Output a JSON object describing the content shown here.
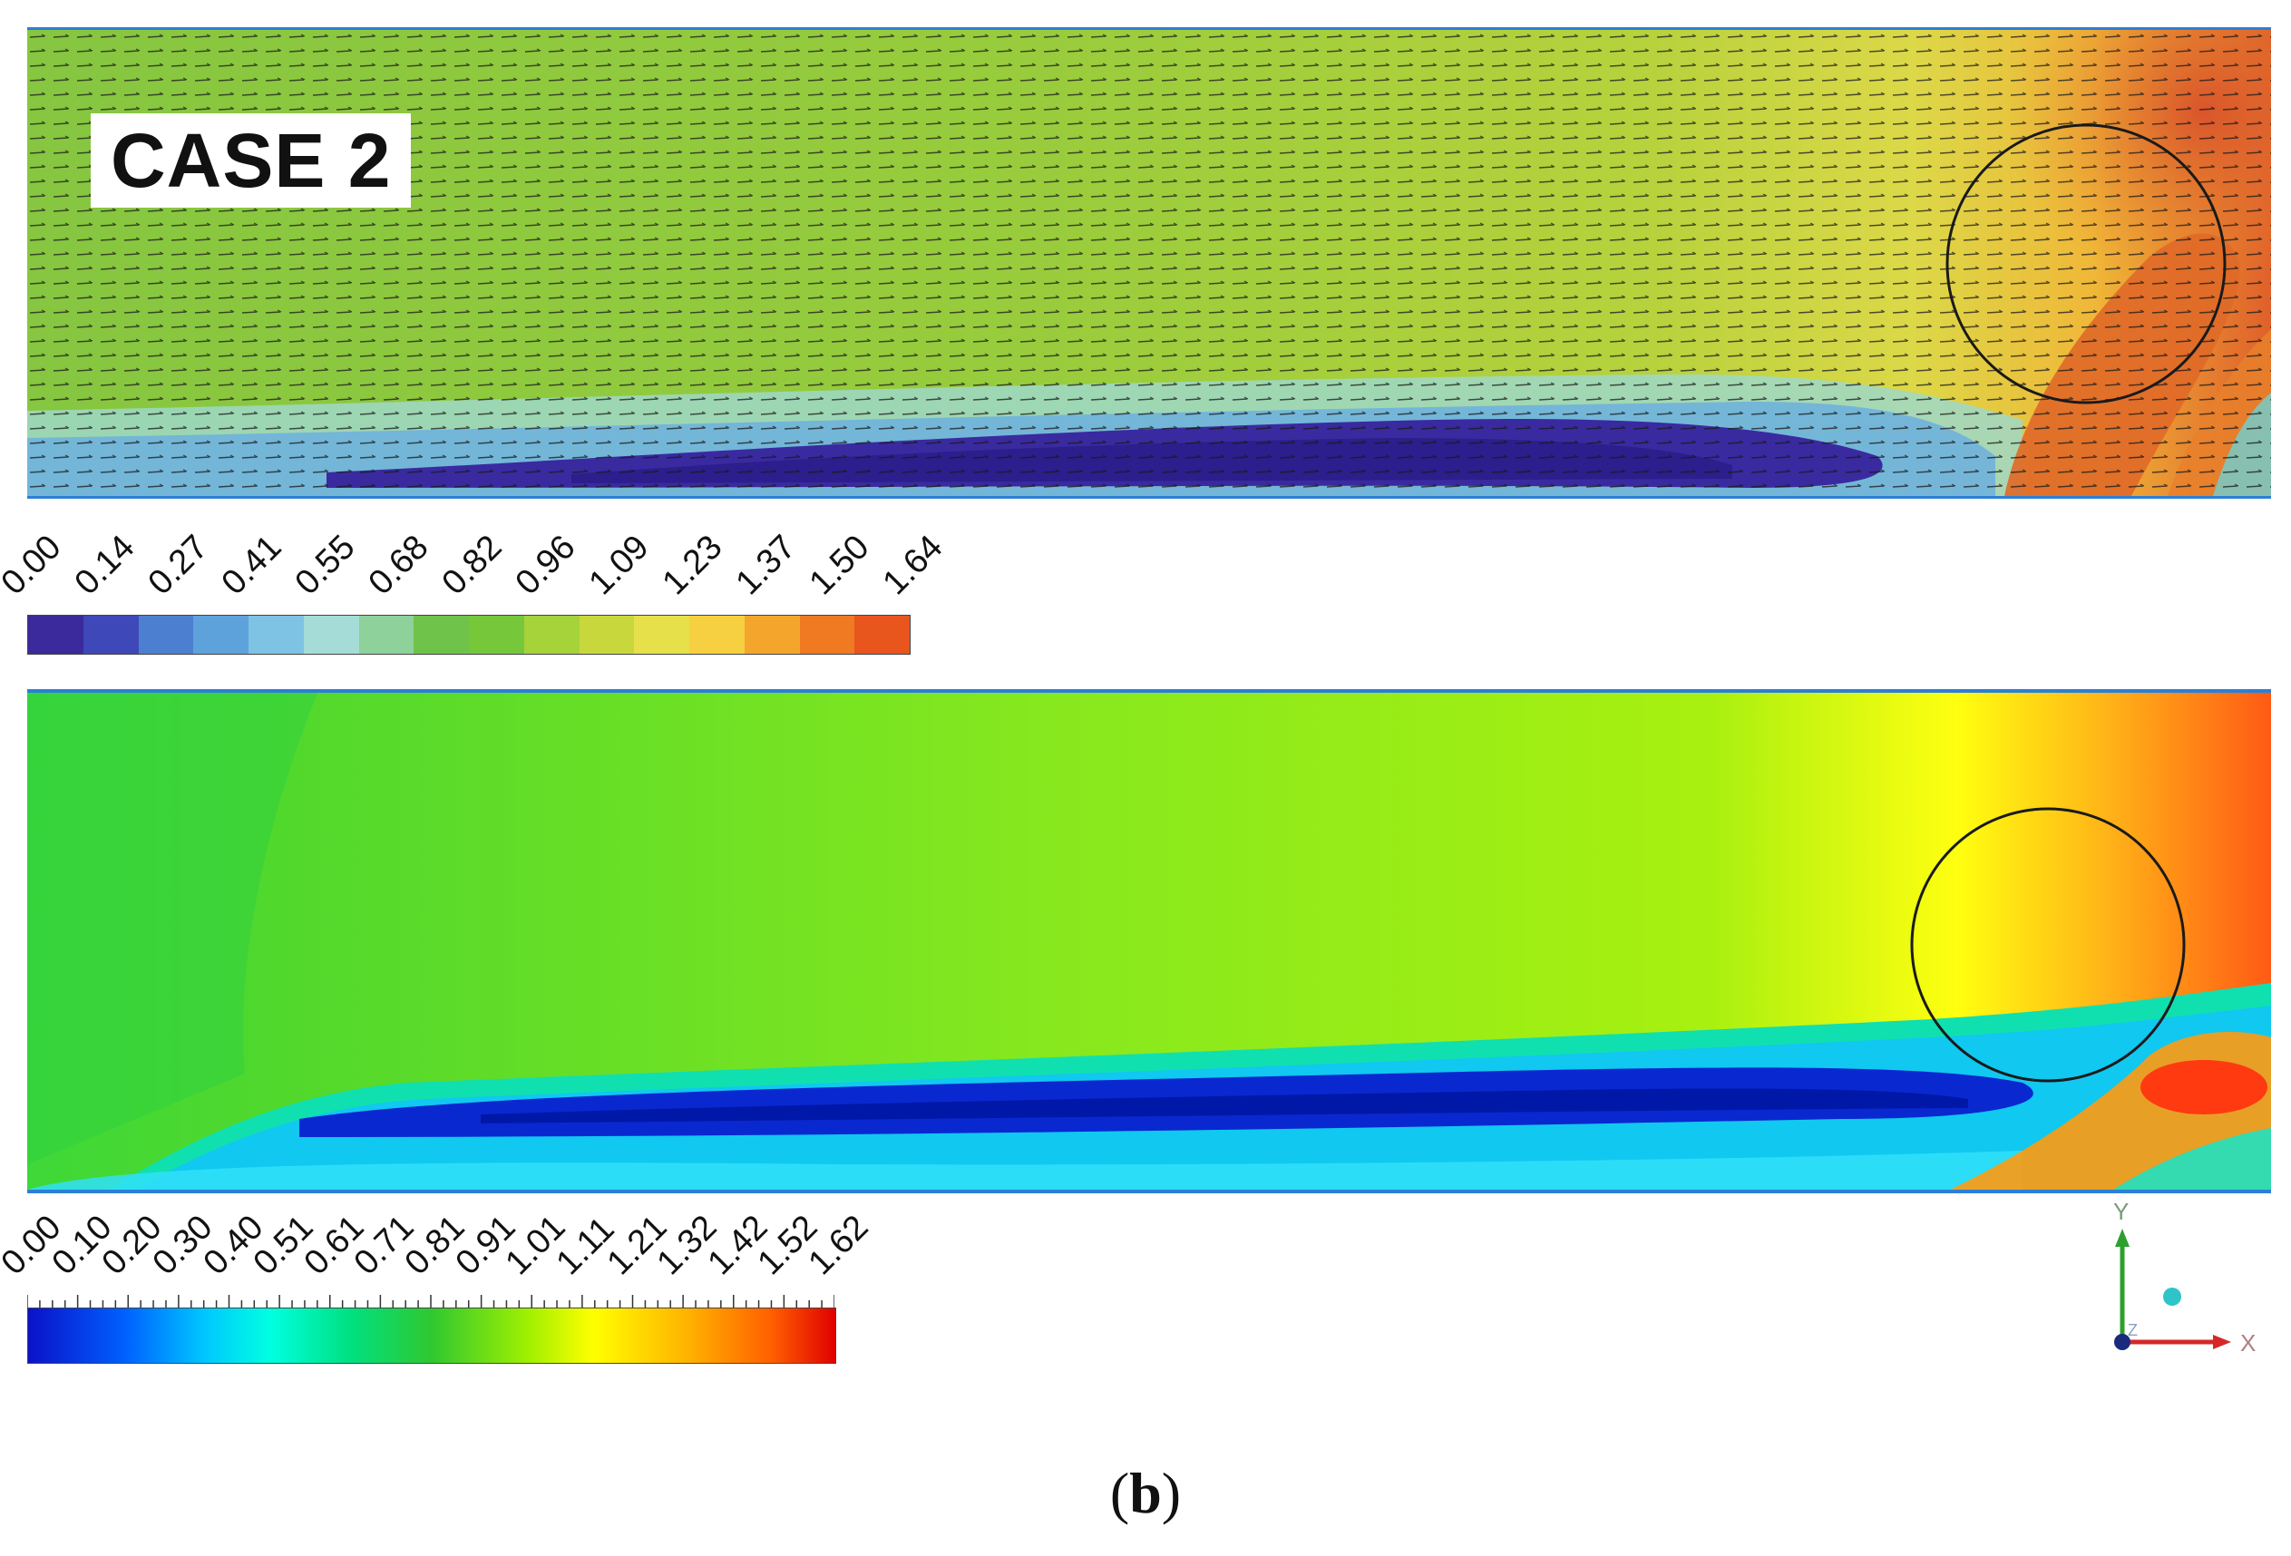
{
  "top_panel": {
    "label": "CASE 2"
  },
  "legend_top": {
    "ticks": [
      "0.00",
      "0.14",
      "0.27",
      "0.41",
      "0.55",
      "0.68",
      "0.82",
      "0.96",
      "1.09",
      "1.23",
      "1.37",
      "1.50",
      "1.64"
    ],
    "colors": [
      "#3a2a9c",
      "#3f48b8",
      "#4d7fd0",
      "#5ea2dc",
      "#7fc3e4",
      "#a6dcd8",
      "#8fd19a",
      "#6fc24a",
      "#76c83a",
      "#a6d23a",
      "#c8d83c",
      "#e6e04a",
      "#f6d040",
      "#f4a62c",
      "#ef7a22",
      "#e8561e"
    ]
  },
  "legend_bottom": {
    "ticks": [
      "0.00",
      "0.10",
      "0.20",
      "0.30",
      "0.40",
      "0.51",
      "0.61",
      "0.71",
      "0.81",
      "0.91",
      "1.01",
      "1.11",
      "1.21",
      "1.32",
      "1.42",
      "1.52",
      "1.62"
    ]
  },
  "axes": {
    "y_label": "Y",
    "x_label": "X",
    "z_label": "Z"
  },
  "caption": {
    "open": "(",
    "letter": "b",
    "close": ")"
  }
}
